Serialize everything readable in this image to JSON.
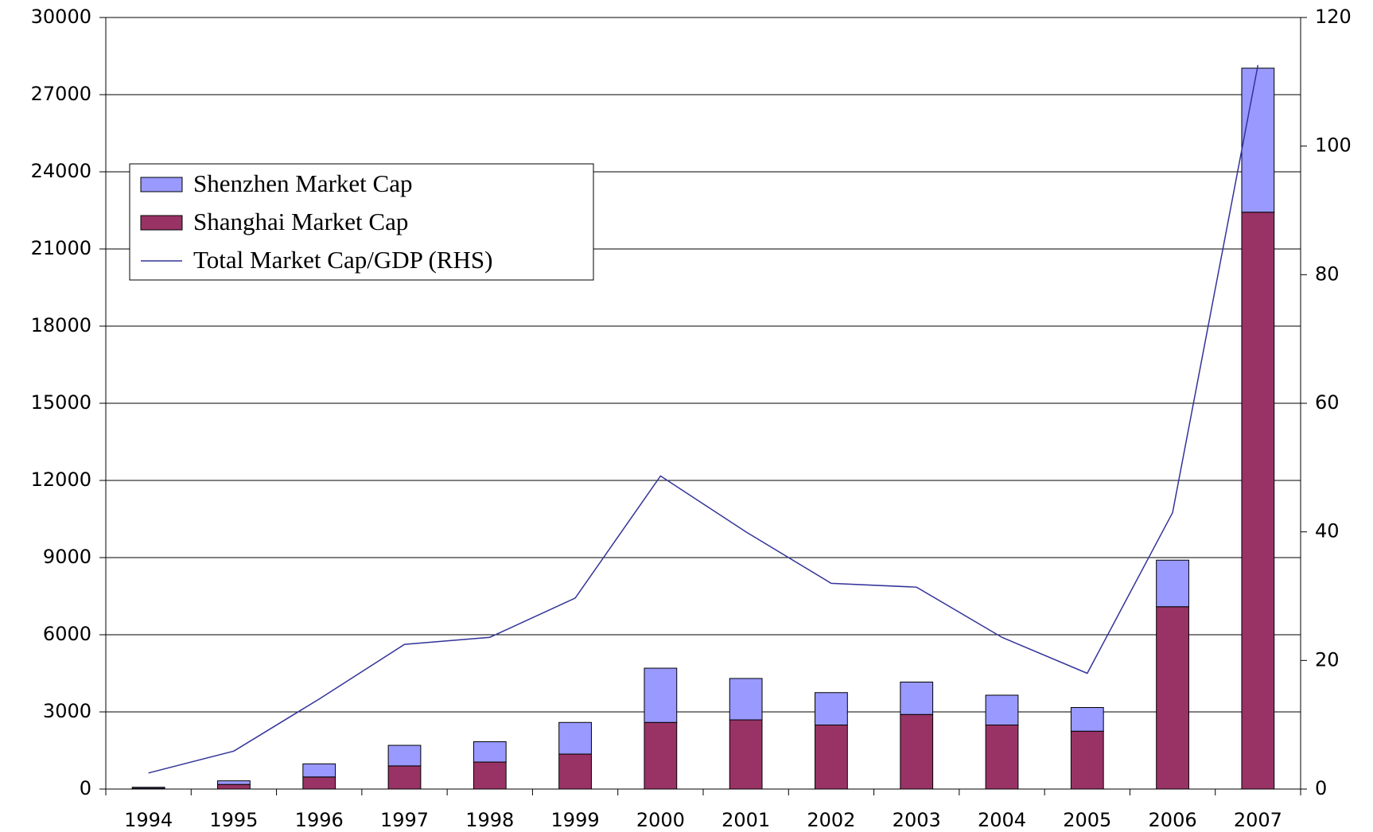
{
  "chart_data": {
    "type": "bar",
    "categories": [
      "1994",
      "1995",
      "1996",
      "1997",
      "1998",
      "1999",
      "2000",
      "2001",
      "2002",
      "2003",
      "2004",
      "2005",
      "2006",
      "2007"
    ],
    "series": [
      {
        "name": "Shenzhen Market Cap",
        "type": "bar",
        "color": "#9999ff",
        "values": [
          40,
          140,
          510,
          800,
          790,
          1230,
          2110,
          1610,
          1260,
          1260,
          1160,
          920,
          1810,
          5600
        ]
      },
      {
        "name": "Shanghai Market Cap",
        "type": "bar",
        "color": "#993366",
        "values": [
          30,
          180,
          470,
          900,
          1050,
          1360,
          2590,
          2690,
          2490,
          2900,
          2490,
          2250,
          7090,
          22430
        ]
      },
      {
        "name": "Total Market Cap/GDP (RHS)",
        "type": "line",
        "axis": "y2",
        "color": "#333399",
        "values": [
          2.5,
          5.9,
          14,
          22.5,
          23.6,
          29.7,
          48.7,
          40,
          32,
          31.4,
          23.6,
          18,
          43,
          112.6
        ]
      }
    ],
    "ylim": [
      0,
      30000
    ],
    "yticks": [
      0,
      3000,
      6000,
      9000,
      12000,
      15000,
      18000,
      21000,
      24000,
      27000,
      30000
    ],
    "y2lim": [
      0,
      120
    ],
    "y2ticks": [
      0,
      20,
      40,
      60,
      80,
      100,
      120
    ],
    "grid": true,
    "legend": "upper left"
  }
}
